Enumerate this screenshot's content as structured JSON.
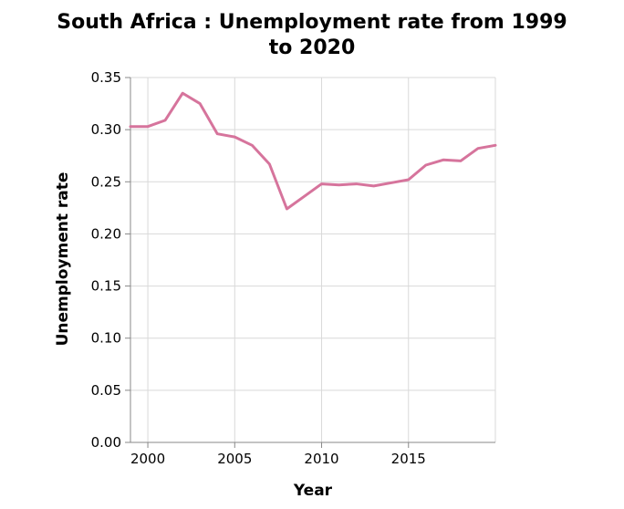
{
  "chart_data": {
    "type": "line",
    "title_lines": [
      "South Africa : Unemployment rate from 1999",
      "to 2020"
    ],
    "xlabel": "Year",
    "ylabel": "Unemployment rate",
    "xlim": [
      1999,
      2020
    ],
    "ylim": [
      0,
      0.35
    ],
    "x_ticks": [
      2000,
      2005,
      2010,
      2015
    ],
    "x_tick_labels": [
      "2000",
      "2005",
      "2010",
      "2015"
    ],
    "y_ticks": [
      0,
      0.05,
      0.1,
      0.15,
      0.2,
      0.25,
      0.3,
      0.35
    ],
    "y_tick_labels": [
      "0.00",
      "0.05",
      "0.10",
      "0.15",
      "0.20",
      "0.25",
      "0.30",
      "0.35"
    ],
    "grid": true,
    "series": [
      {
        "color": "#d6749c",
        "x": [
          1999,
          2000,
          2001,
          2002,
          2003,
          2004,
          2005,
          2006,
          2007,
          2008,
          2009,
          2010,
          2011,
          2012,
          2013,
          2014,
          2015,
          2016,
          2017,
          2018,
          2019,
          2020
        ],
        "values": [
          0.303,
          0.303,
          0.309,
          0.335,
          0.325,
          0.296,
          0.293,
          0.285,
          0.267,
          0.224,
          0.236,
          0.248,
          0.247,
          0.248,
          0.246,
          0.249,
          0.252,
          0.266,
          0.271,
          0.27,
          0.282,
          0.285
        ]
      }
    ]
  }
}
